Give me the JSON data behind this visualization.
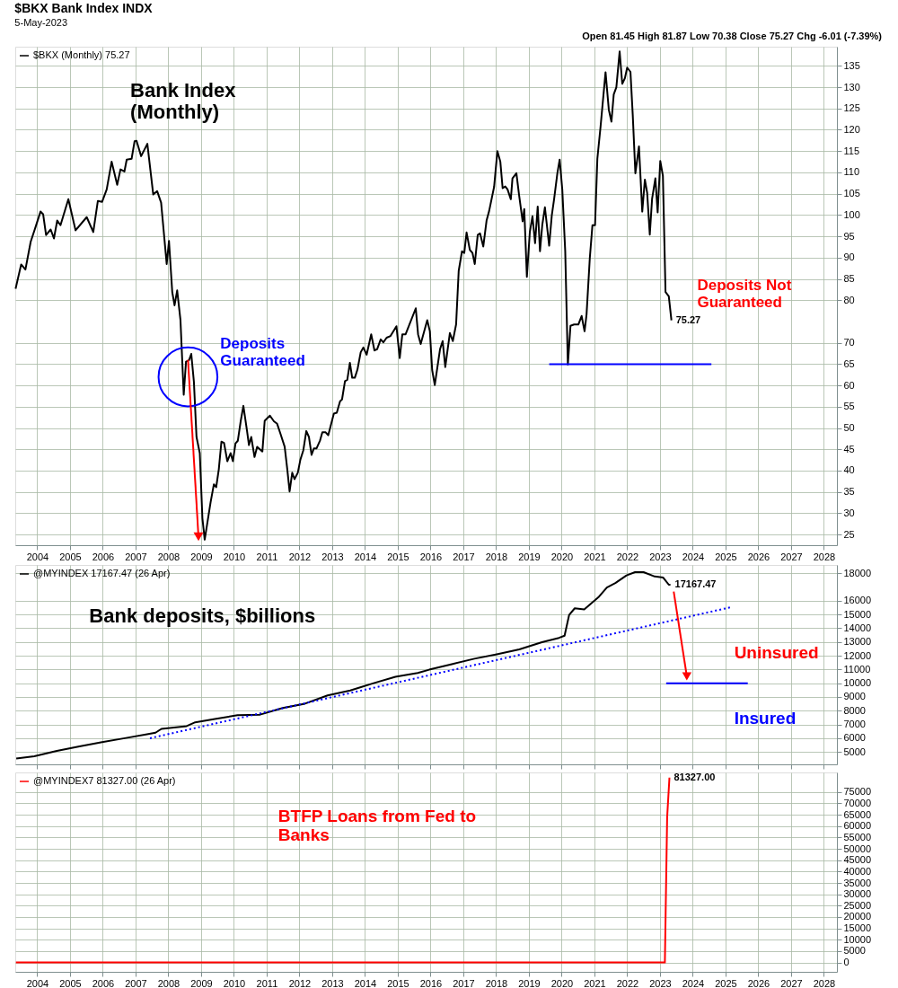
{
  "chart_data": [
    {
      "type": "line",
      "title": "$BKX Bank Index INDX",
      "subtitle": "5-May-2023",
      "annotations": [
        "Bank Index\n(Monthly)",
        {
          "text": "Deposits\nGuaranteed",
          "x": 2008.6,
          "y": 62
        },
        "Deposits Not\nGuaranteed",
        "Open 81.45  High 81.87  Low 70.38  Close 75.27  Chg -6.01 (-7.39%)"
      ],
      "xlim": [
        2003.33,
        2028.4
      ],
      "ylim": [
        22.5,
        139.5
      ],
      "xticks": [
        2004,
        2005,
        2006,
        2007,
        2008,
        2009,
        2010,
        2011,
        2012,
        2013,
        2014,
        2015,
        2016,
        2017,
        2018,
        2019,
        2020,
        2021,
        2022,
        2023,
        2024,
        2025,
        2026,
        2027,
        2028
      ],
      "yticks": [
        25,
        30,
        35,
        40,
        45,
        50,
        55,
        60,
        65,
        70,
        80,
        85,
        90,
        95,
        100,
        105,
        110,
        115,
        120,
        125,
        130,
        135
      ],
      "grid": true,
      "legend": "top left",
      "series": [
        {
          "name": "$BKX (Monthly) 75.27",
          "color": "#000000",
          "x": [
            2003.34,
            2003.51,
            2003.64,
            2003.8,
            2003.95,
            2004.1,
            2004.18,
            2004.27,
            2004.41,
            2004.51,
            2004.61,
            2004.71,
            2004.95,
            2005.17,
            2005.51,
            2005.71,
            2005.85,
            2005.98,
            2006.12,
            2006.27,
            2006.44,
            2006.54,
            2006.66,
            2006.73,
            2006.88,
            2006.97,
            2007.03,
            2007.17,
            2007.36,
            2007.54,
            2007.66,
            2007.78,
            2007.95,
            2008.02,
            2008.12,
            2008.19,
            2008.27,
            2008.37,
            2008.47,
            2008.54,
            2008.63,
            2008.7,
            2008.78,
            2008.86,
            2008.96,
            2009.04,
            2009.11,
            2009.29,
            2009.39,
            2009.46,
            2009.54,
            2009.62,
            2009.7,
            2009.8,
            2009.9,
            2009.97,
            2010.05,
            2010.12,
            2010.21,
            2010.29,
            2010.4,
            2010.46,
            2010.53,
            2010.63,
            2010.71,
            2010.87,
            2010.94,
            2011.1,
            2011.22,
            2011.32,
            2011.42,
            2011.55,
            2011.63,
            2011.7,
            2011.78,
            2011.85,
            2011.95,
            2012.03,
            2012.12,
            2012.21,
            2012.29,
            2012.37,
            2012.44,
            2012.52,
            2012.63,
            2012.7,
            2012.8,
            2012.88,
            2013.05,
            2013.14,
            2013.24,
            2013.3,
            2013.39,
            2013.46,
            2013.54,
            2013.61,
            2013.69,
            2013.77,
            2013.87,
            2013.95,
            2014.05,
            2014.19,
            2014.29,
            2014.37,
            2014.48,
            2014.56,
            2014.66,
            2014.78,
            2014.96,
            2015.06,
            2015.14,
            2015.24,
            2015.55,
            2015.62,
            2015.7,
            2015.9,
            2015.98,
            2016.05,
            2016.13,
            2016.29,
            2016.37,
            2016.45,
            2016.59,
            2016.68,
            2016.78,
            2016.86,
            2016.96,
            2017.03,
            2017.1,
            2017.2,
            2017.28,
            2017.35,
            2017.44,
            2017.51,
            2017.61,
            2017.71,
            2017.79,
            2017.94,
            2018.04,
            2018.13,
            2018.2,
            2018.28,
            2018.35,
            2018.45,
            2018.5,
            2018.62,
            2018.7,
            2018.81,
            2018.86,
            2018.94,
            2019.03,
            2019.11,
            2019.19,
            2019.27,
            2019.34,
            2019.41,
            2019.49,
            2019.62,
            2019.7,
            2019.77,
            2019.87,
            2019.94,
            2020.02,
            2020.11,
            2020.19,
            2020.27,
            2020.38,
            2020.51,
            2020.61,
            2020.7,
            2020.76,
            2020.86,
            2020.94,
            2021.02,
            2021.09,
            2021.19,
            2021.34,
            2021.44,
            2021.52,
            2021.59,
            2021.67,
            2021.77,
            2021.85,
            2021.93,
            2022.0,
            2022.1,
            2022.17,
            2022.25,
            2022.36,
            2022.46,
            2022.54,
            2022.61,
            2022.69,
            2022.76,
            2022.86,
            2022.93,
            2023.01,
            2023.09,
            2023.17,
            2023.27,
            2023.35
          ],
          "values": [
            82.7,
            88.4,
            87.2,
            93.7,
            97.2,
            100.8,
            100.2,
            95.3,
            96.6,
            94.5,
            98.7,
            97.6,
            103.7,
            96.4,
            99.5,
            96.0,
            103.3,
            103.1,
            106.0,
            112.5,
            107.1,
            110.7,
            110.2,
            113.0,
            113.2,
            117.3,
            117.4,
            113.8,
            116.7,
            104.8,
            105.6,
            102.9,
            88.5,
            93.9,
            81.9,
            78.8,
            82.3,
            75.4,
            57.8,
            65.6,
            65.9,
            67.4,
            60.9,
            47.9,
            44.1,
            28.8,
            23.8,
            32.6,
            36.8,
            36.1,
            40.3,
            46.8,
            46.5,
            42.2,
            44.1,
            42.2,
            46.4,
            47.0,
            51.7,
            55.2,
            49.4,
            46.0,
            47.9,
            43.2,
            45.6,
            44.5,
            51.7,
            52.9,
            51.6,
            51.0,
            48.7,
            45.6,
            40.3,
            35.1,
            39.5,
            38.0,
            39.5,
            42.6,
            44.8,
            49.3,
            47.9,
            43.7,
            45.2,
            45.2,
            47.1,
            49.0,
            49.0,
            48.3,
            53.4,
            53.6,
            56.3,
            56.7,
            61.0,
            61.3,
            65.3,
            61.8,
            61.8,
            63.7,
            67.8,
            68.9,
            67.2,
            72.0,
            68.2,
            68.5,
            70.8,
            70.1,
            71.2,
            71.6,
            73.9,
            66.4,
            72.0,
            72.0,
            78.1,
            72.0,
            69.7,
            75.3,
            72.7,
            63.6,
            60.1,
            68.5,
            70.4,
            64.3,
            72.3,
            70.4,
            74.3,
            86.9,
            91.5,
            91.1,
            95.9,
            91.8,
            91.1,
            88.5,
            95.3,
            95.7,
            92.6,
            98.7,
            101.0,
            106.6,
            115.0,
            112.5,
            106.3,
            106.7,
            106.0,
            103.7,
            108.6,
            109.8,
            104.8,
            98.5,
            101.4,
            85.5,
            96.0,
            99.7,
            93.4,
            102.0,
            91.5,
            97.7,
            101.8,
            92.8,
            99.9,
            103.7,
            109.8,
            113.0,
            106.0,
            91.5,
            64.9,
            74.0,
            74.3,
            74.3,
            76.3,
            72.7,
            76.6,
            89.9,
            97.6,
            97.6,
            113.2,
            120.9,
            133.5,
            124.7,
            121.9,
            128.3,
            130.0,
            138.4,
            130.8,
            132.1,
            134.6,
            133.6,
            123.5,
            109.8,
            116.1,
            100.8,
            108.3,
            105.2,
            95.4,
            103.8,
            108.6,
            100.6,
            112.7,
            109.2,
            81.9,
            80.9,
            75.27
          ],
          "value_labels": [
            null,
            null,
            null,
            null,
            null,
            null,
            null,
            null,
            null,
            null,
            null,
            null,
            null,
            null,
            null,
            null,
            null,
            null,
            null,
            null,
            null,
            null,
            null,
            null,
            null,
            null,
            null,
            null,
            null,
            null,
            null,
            null,
            null,
            null,
            null,
            null,
            null,
            null,
            null,
            null,
            null,
            null,
            null,
            null,
            null,
            null,
            null,
            null,
            null,
            null,
            null,
            null,
            null,
            null,
            null,
            null,
            null,
            null,
            null,
            null,
            null,
            null,
            null,
            null,
            null,
            null,
            null,
            null,
            null,
            null,
            null,
            null,
            null,
            null,
            null,
            null,
            null,
            null,
            null,
            null,
            null,
            null,
            null,
            null,
            null,
            null,
            null,
            null,
            null,
            null,
            null,
            null,
            null,
            null,
            null,
            null,
            null,
            null,
            null,
            null,
            null,
            null,
            null,
            null,
            null,
            null,
            null,
            null,
            null,
            null,
            null,
            null,
            null,
            null,
            null,
            null,
            null,
            null,
            null,
            null,
            null,
            null,
            null,
            null,
            null,
            null,
            null,
            null,
            null,
            null,
            null,
            null,
            null,
            null,
            null,
            null,
            null,
            null,
            null,
            null,
            null,
            null,
            null,
            null,
            null,
            null,
            null,
            null,
            null,
            null,
            null,
            null,
            null,
            null,
            null,
            null,
            null,
            null,
            null,
            null,
            null,
            null,
            null,
            null,
            null,
            null,
            null,
            null,
            null,
            null,
            null,
            null,
            null,
            null,
            null,
            null,
            null,
            null,
            null,
            null,
            null,
            null,
            null,
            null,
            null,
            null,
            null,
            null,
            null,
            null,
            null,
            null,
            null,
            null,
            null,
            null,
            null,
            null,
            null,
            null,
            "75.27"
          ]
        },
        {
          "color": "#0000ff",
          "x": [
            2019.62,
            2024.57
          ],
          "values": [
            65,
            65
          ]
        }
      ]
    },
    {
      "type": "line",
      "tick_labels": "y",
      "annotations": [
        "Bank deposits, $billions",
        "Uninsured",
        "Insured"
      ],
      "xlim": [
        2003.33,
        2028.4
      ],
      "ylim": [
        4100,
        18600
      ],
      "xticks": [
        2004,
        2005,
        2006,
        2007,
        2008,
        2009,
        2010,
        2011,
        2012,
        2013,
        2014,
        2015,
        2016,
        2017,
        2018,
        2019,
        2020,
        2021,
        2022,
        2023,
        2024,
        2025,
        2026,
        2027,
        2028
      ],
      "yticks": [
        5000,
        6000,
        7000,
        8000,
        9000,
        10000,
        11000,
        12000,
        13000,
        14000,
        15000,
        16000,
        18000
      ],
      "grid": true,
      "legend": "top left",
      "series": [
        {
          "name": "@MYINDEX 17167.47 (26 Apr)",
          "color": "#000000",
          "x": [
            2003.36,
            2003.91,
            2004.6,
            2005.29,
            2005.98,
            2006.67,
            2007.35,
            2007.61,
            2007.79,
            2008.56,
            2008.82,
            2009.42,
            2010.11,
            2010.8,
            2011.49,
            2012.17,
            2012.86,
            2013.55,
            2014.24,
            2014.93,
            2015.61,
            2015.96,
            2016.65,
            2017.34,
            2018.02,
            2018.71,
            2019.4,
            2019.92,
            2020.09,
            2020.23,
            2020.4,
            2020.69,
            2021.12,
            2021.38,
            2021.64,
            2021.98,
            2022.24,
            2022.5,
            2022.84,
            2023.1,
            2023.27,
            2023.32
          ],
          "values": [
            4527,
            4687,
            5085,
            5404,
            5723,
            6002,
            6281,
            6400,
            6680,
            6879,
            7158,
            7397,
            7676,
            7716,
            8195,
            8513,
            9111,
            9470,
            9988,
            10466,
            10745,
            10985,
            11383,
            11782,
            12101,
            12460,
            12978,
            13297,
            13456,
            14971,
            15449,
            15369,
            16246,
            16964,
            17283,
            17841,
            18080,
            18080,
            17761,
            17681,
            17163,
            17167.47
          ],
          "value_labels": [
            null,
            null,
            null,
            null,
            null,
            null,
            null,
            null,
            null,
            null,
            null,
            null,
            null,
            null,
            null,
            null,
            null,
            null,
            null,
            null,
            null,
            null,
            null,
            null,
            null,
            null,
            null,
            null,
            null,
            null,
            null,
            null,
            null,
            null,
            null,
            null,
            null,
            null,
            null,
            null,
            null,
            "17167.47"
          ]
        },
        {
          "type": "line",
          "color": "#0000ff",
          "line_style": "dotted",
          "x": [
            2007.44,
            2025.17
          ],
          "values": [
            6000,
            15530
          ]
        },
        {
          "color": "#0000ff",
          "x": [
            2023.19,
            2025.68
          ],
          "values": [
            10000,
            10000
          ]
        }
      ]
    },
    {
      "type": "line",
      "annotations": [
        "BTFP Loans from Fed to\nBanks"
      ],
      "xlim": [
        2003.33,
        2028.4
      ],
      "ylim": [
        -4100,
        83600
      ],
      "xticks": [
        2004,
        2005,
        2006,
        2007,
        2008,
        2009,
        2010,
        2011,
        2012,
        2013,
        2014,
        2015,
        2016,
        2017,
        2018,
        2019,
        2020,
        2021,
        2022,
        2023,
        2024,
        2025,
        2026,
        2027,
        2028
      ],
      "yticks": [
        0,
        5000,
        10000,
        15000,
        20000,
        25000,
        30000,
        35000,
        40000,
        45000,
        50000,
        55000,
        60000,
        65000,
        70000,
        75000
      ],
      "grid": true,
      "legend": "top left",
      "series": [
        {
          "name": "@MYINDEX7 81327.00 (26 Apr)",
          "color": "#ff0000",
          "x": [
            2003.35,
            2023.15,
            2023.22,
            2023.29
          ],
          "values": [
            0,
            0,
            64000,
            81327
          ],
          "value_labels": [
            null,
            null,
            null,
            "81327.00"
          ]
        }
      ]
    }
  ]
}
